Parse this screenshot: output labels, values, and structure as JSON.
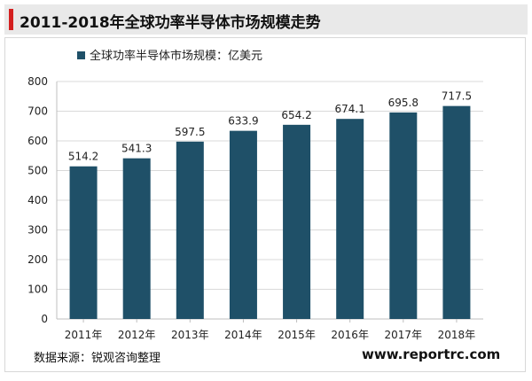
{
  "title": "2011-2018年全球功率半导体市场规模走势",
  "source": "数据来源：锐观咨询整理",
  "website": "www.reportrc.com",
  "chart_data": {
    "type": "bar",
    "title": "",
    "xlabel": "",
    "ylabel": "",
    "categories": [
      "2011年",
      "2012年",
      "2013年",
      "2014年",
      "2015年",
      "2016年",
      "2017年",
      "2018年"
    ],
    "series": [
      {
        "name": "全球功率半导体市场规模：亿美元",
        "values": [
          514.2,
          541.3,
          597.5,
          633.9,
          654.2,
          674.1,
          695.8,
          717.5
        ],
        "labels": [
          "514.2",
          "541.3",
          "597.5",
          "633.9",
          "654.2",
          "674.1",
          "695.8",
          "717.5"
        ]
      }
    ],
    "ylim": [
      0,
      800
    ],
    "yticks": [
      0,
      100,
      200,
      300,
      400,
      500,
      600,
      700,
      800
    ],
    "grid": true,
    "legend": "top-left",
    "colors": {
      "bar": "#1f5068",
      "grid": "#d9d9d9",
      "axis": "#bfbfbf",
      "text": "#222222"
    }
  }
}
